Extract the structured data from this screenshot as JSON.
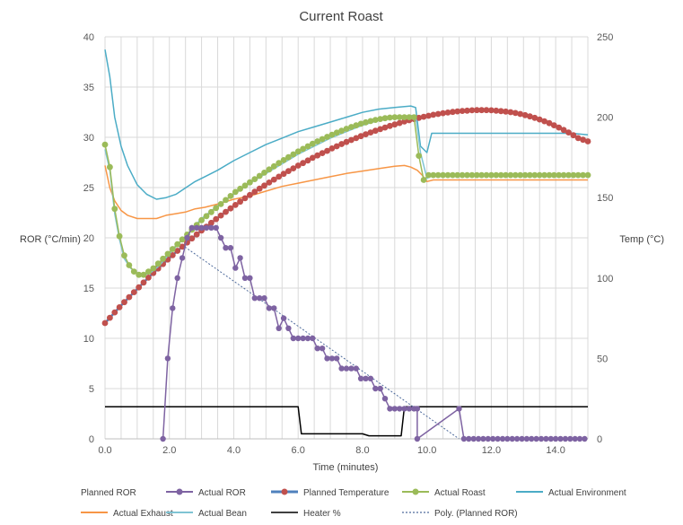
{
  "chart_data": {
    "type": "line",
    "title": "Current Roast",
    "xlabel": "Time (minutes)",
    "ylabel": "ROR (°C/min)",
    "y2label": "Temp (°C)",
    "xlim": [
      0,
      15
    ],
    "ylim": [
      0,
      40
    ],
    "y2lim": [
      0,
      250
    ],
    "xticks": [
      "0.0",
      "2.0",
      "4.0",
      "6.0",
      "8.0",
      "10.0",
      "12.0",
      "14.0"
    ],
    "yticks": [
      "0",
      "5",
      "10",
      "15",
      "20",
      "25",
      "30",
      "35",
      "40"
    ],
    "y2ticks": [
      "0",
      "50",
      "100",
      "150",
      "200",
      "250"
    ],
    "grid": true,
    "legend_position": "bottom",
    "legend": [
      "Planned ROR",
      "Actual ROR",
      "Planned Temperature",
      "Actual Roast",
      "Actual Environment",
      "Actual Exhaust",
      "Actual Bean",
      "Heater %",
      "Poly. (Planned ROR)"
    ],
    "colors": {
      "actual_ror": "#7e63a2",
      "planned_temp": "#c0504d",
      "planned_temp_line": "#4f81bd",
      "actual_roast": "#9bbb59",
      "actual_environment": "#4bacc6",
      "actual_exhaust": "#f79646",
      "actual_bean": "#7fc4d4",
      "heater": "#000000",
      "poly": "#4f6b9c",
      "grid": "#d9d9d9",
      "axis": "#bfbfbf"
    },
    "series": [
      {
        "name": "Actual ROR",
        "axis": "left",
        "marker": "circle",
        "x": [
          1.8,
          1.95,
          2.1,
          2.25,
          2.4,
          2.55,
          2.7,
          2.85,
          3.0,
          3.15,
          3.3,
          3.45,
          3.6,
          3.75,
          3.9,
          4.05,
          4.2,
          4.35,
          4.5,
          4.65,
          4.8,
          4.95,
          5.1,
          5.25,
          5.4,
          5.55,
          5.7,
          5.85,
          6.0,
          6.15,
          6.3,
          6.45,
          6.6,
          6.75,
          6.9,
          7.05,
          7.2,
          7.35,
          7.5,
          7.65,
          7.8,
          7.95,
          8.1,
          8.25,
          8.4,
          8.55,
          8.7,
          8.85,
          9.0,
          9.15,
          9.3,
          9.45,
          9.6,
          9.7,
          9.7,
          11.0,
          11.15,
          11.3,
          11.45,
          11.6,
          11.75,
          11.9,
          12.05,
          12.2,
          12.35,
          12.5,
          12.65,
          12.8,
          12.95,
          13.1,
          13.25,
          13.4,
          13.55,
          13.7,
          13.85,
          14.0,
          14.15,
          14.3,
          14.45,
          14.6,
          14.75,
          14.9
        ],
        "y": [
          0,
          8,
          13,
          16,
          18,
          20,
          21,
          21,
          21,
          21,
          21,
          21,
          20,
          19,
          19,
          17,
          18,
          16,
          16,
          14,
          14,
          14,
          13,
          13,
          11,
          12,
          11,
          10,
          10,
          10,
          10,
          10,
          9,
          9,
          8,
          8,
          8,
          7,
          7,
          7,
          7,
          6,
          6,
          6,
          5,
          5,
          4,
          3,
          3,
          3,
          3,
          3,
          3,
          3,
          0,
          3,
          0,
          0,
          0,
          0,
          0,
          0,
          0,
          0,
          0,
          0,
          0,
          0,
          0,
          0,
          0,
          0,
          0,
          0,
          0,
          0,
          0,
          0,
          0,
          0,
          0,
          0
        ]
      },
      {
        "name": "Planned Temperature",
        "axis": "right",
        "marker": "circle",
        "x": [
          0.0,
          0.15,
          0.3,
          0.45,
          0.6,
          0.75,
          0.9,
          1.05,
          1.2,
          1.35,
          1.5,
          1.65,
          1.8,
          1.95,
          2.1,
          2.25,
          2.4,
          2.55,
          2.7,
          2.85,
          3.0,
          3.15,
          3.3,
          3.45,
          3.6,
          3.75,
          3.9,
          4.05,
          4.2,
          4.35,
          4.5,
          4.65,
          4.8,
          4.95,
          5.1,
          5.25,
          5.4,
          5.55,
          5.7,
          5.85,
          6.0,
          6.15,
          6.3,
          6.45,
          6.6,
          6.75,
          6.9,
          7.05,
          7.2,
          7.35,
          7.5,
          7.65,
          7.8,
          7.95,
          8.1,
          8.25,
          8.4,
          8.55,
          8.7,
          8.85,
          9.0,
          9.15,
          9.3,
          9.45,
          9.6,
          9.75,
          9.9,
          10.05,
          10.2,
          10.35,
          10.5,
          10.65,
          10.8,
          10.95,
          11.1,
          11.25,
          11.4,
          11.55,
          11.7,
          11.85,
          12.0,
          12.15,
          12.3,
          12.45,
          12.6,
          12.75,
          12.9,
          13.05,
          13.2,
          13.35,
          13.5,
          13.65,
          13.8,
          13.95,
          14.1,
          14.25,
          14.4,
          14.55,
          14.7,
          14.85,
          15.0
        ],
        "y": [
          72.0,
          75.3,
          78.6,
          81.8,
          85.0,
          88.1,
          91.2,
          94.2,
          97.2,
          100.2,
          103.1,
          105.9,
          108.7,
          111.5,
          114.2,
          116.9,
          119.5,
          122.1,
          124.6,
          127.1,
          129.5,
          131.9,
          134.3,
          136.6,
          138.9,
          141.1,
          143.3,
          145.4,
          147.5,
          149.6,
          151.6,
          153.6,
          155.6,
          157.5,
          159.4,
          161.2,
          163.0,
          164.8,
          166.5,
          168.2,
          169.9,
          171.5,
          173.1,
          174.7,
          176.2,
          177.7,
          179.1,
          180.6,
          181.9,
          183.3,
          184.6,
          185.8,
          187.0,
          188.2,
          189.4,
          190.5,
          191.6,
          192.6,
          193.6,
          194.6,
          195.5,
          196.4,
          197.3,
          198.1,
          198.9,
          199.6,
          200.3,
          200.9,
          201.5,
          202.0,
          202.5,
          202.9,
          203.3,
          203.6,
          203.9,
          204.1,
          204.3,
          204.4,
          204.4,
          204.4,
          204.3,
          204.1,
          203.8,
          203.5,
          203.1,
          202.6,
          202.0,
          201.3,
          200.5,
          199.6,
          198.6,
          197.5,
          196.3,
          195.0,
          193.6,
          192.1,
          190.5,
          188.8,
          187.0,
          186.0,
          185.0
        ]
      },
      {
        "name": "Actual Roast",
        "axis": "right",
        "marker": "circle",
        "x": [
          0.0,
          0.15,
          0.3,
          0.45,
          0.6,
          0.75,
          0.9,
          1.05,
          1.2,
          1.35,
          1.5,
          1.65,
          1.8,
          1.95,
          2.1,
          2.25,
          2.4,
          2.55,
          2.7,
          2.85,
          3.0,
          3.15,
          3.3,
          3.45,
          3.6,
          3.75,
          3.9,
          4.05,
          4.2,
          4.35,
          4.5,
          4.65,
          4.8,
          4.95,
          5.1,
          5.25,
          5.4,
          5.55,
          5.7,
          5.85,
          6.0,
          6.15,
          6.3,
          6.45,
          6.6,
          6.75,
          6.9,
          7.05,
          7.2,
          7.35,
          7.5,
          7.65,
          7.8,
          7.95,
          8.1,
          8.25,
          8.4,
          8.55,
          8.7,
          8.85,
          9.0,
          9.15,
          9.3,
          9.45,
          9.6,
          9.75,
          9.9,
          10.05,
          10.2,
          10.35,
          10.5,
          10.65,
          10.8,
          10.95,
          11.1,
          11.25,
          11.4,
          11.55,
          11.7,
          11.85,
          12.0,
          12.15,
          12.3,
          12.45,
          12.6,
          12.75,
          12.9,
          13.05,
          13.2,
          13.35,
          13.5,
          13.65,
          13.8,
          13.95,
          14.1,
          14.25,
          14.4,
          14.55,
          14.7,
          14.85,
          15.0
        ],
        "y": [
          183.0,
          169.0,
          143.0,
          126.0,
          114.0,
          108.0,
          104.0,
          102.0,
          102.0,
          104.0,
          106.0,
          109.0,
          112.0,
          115.0,
          118.0,
          121.0,
          124.0,
          127.0,
          130.0,
          133.0,
          136.0,
          138.5,
          141.0,
          143.5,
          146.0,
          148.5,
          151.0,
          153.5,
          155.5,
          157.5,
          159.5,
          161.5,
          163.5,
          165.5,
          167.5,
          169.5,
          171.5,
          173.3,
          175.1,
          176.9,
          178.7,
          180.3,
          181.9,
          183.5,
          185.0,
          186.4,
          187.8,
          189.1,
          190.4,
          191.6,
          192.8,
          193.9,
          194.9,
          195.9,
          196.8,
          197.6,
          198.3,
          198.9,
          199.4,
          199.8,
          200.0,
          200.0,
          200.0,
          200.0,
          200.0,
          176.0,
          161.0,
          164.0,
          164.0,
          164.0,
          164.0,
          164.0,
          164.0,
          164.0,
          164.0,
          164.0,
          164.0,
          164.0,
          164.0,
          164.0,
          164.0,
          164.0,
          164.0,
          164.0,
          164.0,
          164.0,
          164.0,
          164.0,
          164.0,
          164.0,
          164.0,
          164.0,
          164.0,
          164.0,
          164.0,
          164.0,
          164.0,
          164.0,
          164.0,
          164.0,
          164.0
        ]
      },
      {
        "name": "Actual Environment",
        "axis": "right",
        "x": [
          0.0,
          0.15,
          0.3,
          0.5,
          0.7,
          1.0,
          1.3,
          1.6,
          1.9,
          2.2,
          2.5,
          2.8,
          3.1,
          3.5,
          4.0,
          4.5,
          5.0,
          5.5,
          6.0,
          6.5,
          7.0,
          7.5,
          8.0,
          8.5,
          9.0,
          9.5,
          9.65,
          9.8,
          10.0,
          10.15,
          10.5,
          11.0,
          12.0,
          13.0,
          14.0,
          14.5,
          15.0
        ],
        "y": [
          242.0,
          225.0,
          200.0,
          182.0,
          170.0,
          158.0,
          152.0,
          149.0,
          150.0,
          152.0,
          156.0,
          160.0,
          163.0,
          167.0,
          173.0,
          178.0,
          183.0,
          187.0,
          191.0,
          194.0,
          197.0,
          200.0,
          203.0,
          205.0,
          206.0,
          207.0,
          206.0,
          182.0,
          178.0,
          190.0,
          190.0,
          190.0,
          190.0,
          190.0,
          190.0,
          190.0,
          189.0
        ]
      },
      {
        "name": "Actual Exhaust",
        "axis": "right",
        "x": [
          0.0,
          0.15,
          0.3,
          0.5,
          0.7,
          1.0,
          1.3,
          1.6,
          1.9,
          2.2,
          2.5,
          2.8,
          3.1,
          3.5,
          4.0,
          4.5,
          5.0,
          5.5,
          6.0,
          6.5,
          7.0,
          7.5,
          8.0,
          8.5,
          9.0,
          9.3,
          9.5,
          9.7,
          9.85,
          10.0,
          10.2,
          11.0,
          12.0,
          13.0,
          14.0,
          15.0
        ],
        "y": [
          170.0,
          156.0,
          148.0,
          142.0,
          139.0,
          137.0,
          137.0,
          137.0,
          139.0,
          140.0,
          141.0,
          143.0,
          144.0,
          146.0,
          149.0,
          151.0,
          154.0,
          157.0,
          159.0,
          161.0,
          163.0,
          165.0,
          166.5,
          168.0,
          169.5,
          170.0,
          169.0,
          167.0,
          164.0,
          160.0,
          161.0,
          161.0,
          161.0,
          161.0,
          161.0,
          161.0
        ]
      },
      {
        "name": "Actual Bean",
        "axis": "right",
        "x": [
          0.0,
          0.15,
          0.3,
          0.45,
          0.6,
          0.8,
          1.0,
          1.2,
          1.4,
          1.7,
          2.0,
          2.5,
          3.0,
          3.5,
          4.0,
          4.5,
          5.0,
          5.5,
          6.0,
          6.5,
          7.0,
          7.5,
          8.0,
          8.5,
          9.0,
          9.5,
          9.65,
          9.8,
          10.0,
          10.2,
          11.0,
          12.0,
          13.0,
          14.0,
          15.0
        ],
        "y": [
          180.0,
          167.0,
          140.0,
          124.0,
          112.0,
          106.0,
          103.0,
          102.0,
          103.0,
          108.0,
          115.0,
          126.0,
          137.0,
          145.0,
          152.0,
          159.0,
          165.0,
          171.0,
          177.0,
          182.0,
          187.0,
          191.0,
          195.0,
          198.0,
          200.0,
          201.0,
          201.0,
          178.0,
          162.0,
          164.0,
          164.0,
          164.0,
          164.0,
          164.0,
          164.0
        ]
      },
      {
        "name": "Heater %",
        "axis": "left",
        "x": [
          0.0,
          6.0,
          6.1,
          7.0,
          8.0,
          8.2,
          9.2,
          9.3,
          11.0,
          15.0
        ],
        "y": [
          3.2,
          3.2,
          0.5,
          0.5,
          0.5,
          0.3,
          0.3,
          3.2,
          3.2,
          3.2
        ]
      },
      {
        "name": "Poly. (Planned ROR)",
        "axis": "left",
        "x": [
          2.3,
          11.0
        ],
        "y": [
          19.5,
          0.0
        ]
      }
    ]
  }
}
